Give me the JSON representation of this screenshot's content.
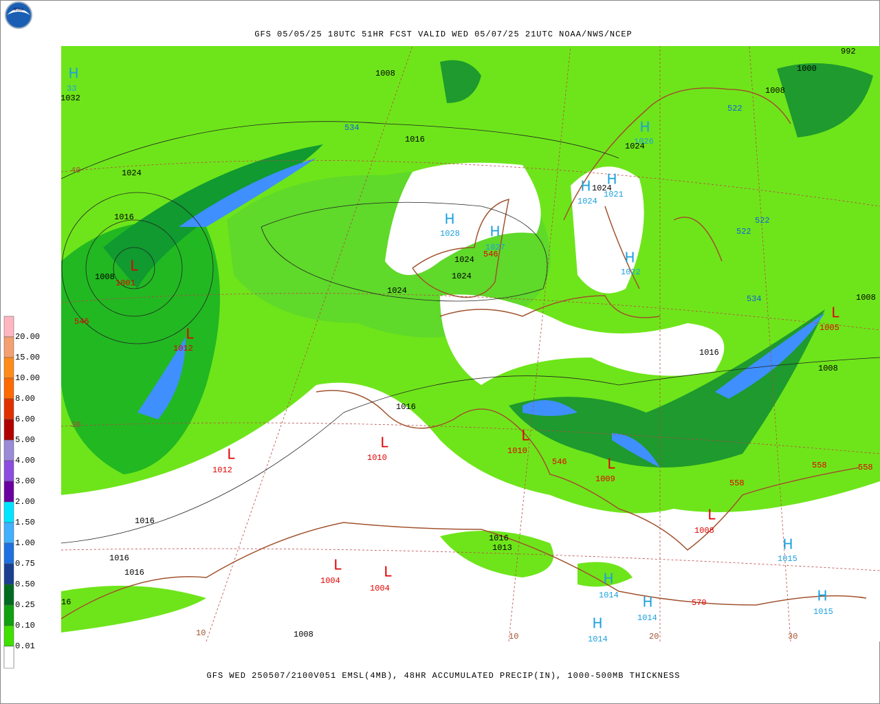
{
  "header": {
    "title": "GFS 05/05/25 18UTC 51HR FCST VALID WED 05/07/25 21UTC NOAA/NWS/NCEP"
  },
  "footer": {
    "caption": "GFS WED 250507/2100V051 EMSL(4MB), 48HR ACCUMULATED PRECIP(IN), 1000-500MB THICKNESS"
  },
  "legend": {
    "labels": [
      "20.00",
      "15.00",
      "10.00",
      "8.00",
      "6.00",
      "5.00",
      "4.00",
      "3.00",
      "2.00",
      "1.50",
      "1.00",
      "0.75",
      "0.50",
      "0.25",
      "0.10",
      "0.01"
    ]
  },
  "map": {
    "highs": [
      {
        "symbol": "H",
        "pressure": "33"
      },
      {
        "symbol": "H",
        "pressure": "1028"
      },
      {
        "symbol": "H",
        "pressure": "1027"
      },
      {
        "symbol": "H",
        "pressure": "1022"
      },
      {
        "symbol": "H",
        "pressure": "1024"
      },
      {
        "symbol": "H",
        "pressure": "1021"
      },
      {
        "symbol": "H",
        "pressure": "1026"
      },
      {
        "symbol": "H",
        "pressure": "1014"
      },
      {
        "symbol": "H",
        "pressure": "1014"
      },
      {
        "symbol": "H",
        "pressure": "1014"
      },
      {
        "symbol": "H",
        "pressure": "1015"
      },
      {
        "symbol": "H",
        "pressure": "1015"
      }
    ],
    "lows": [
      {
        "symbol": "L",
        "pressure": "1001"
      },
      {
        "symbol": "L",
        "pressure": "1012"
      },
      {
        "symbol": "L",
        "pressure": "1012"
      },
      {
        "symbol": "L",
        "pressure": "1010"
      },
      {
        "symbol": "L",
        "pressure": "1010"
      },
      {
        "symbol": "L",
        "pressure": "1009"
      },
      {
        "symbol": "L",
        "pressure": "1008"
      },
      {
        "symbol": "L",
        "pressure": "1004"
      },
      {
        "symbol": "L",
        "pressure": "1004"
      },
      {
        "symbol": "L",
        "pressure": "1005"
      }
    ],
    "isobar_labels": [
      "1032",
      "1008",
      "1016",
      "1024",
      "1016",
      "1008",
      "1024",
      "1024",
      "1024",
      "1024",
      "1024",
      "1000",
      "1008",
      "992",
      "1008",
      "1016",
      "1008",
      "1016",
      "1016",
      "1016",
      "1016",
      "1016",
      "1008",
      "16",
      "1013"
    ],
    "thickness_labels_warm": [
      "546",
      "546",
      "546",
      "558",
      "558",
      "558",
      "570"
    ],
    "thickness_labels_cold": [
      "534",
      "522",
      "522",
      "522",
      "534"
    ],
    "latitude_labels": [
      "40",
      "30",
      "10",
      "10",
      "20",
      "30"
    ]
  }
}
